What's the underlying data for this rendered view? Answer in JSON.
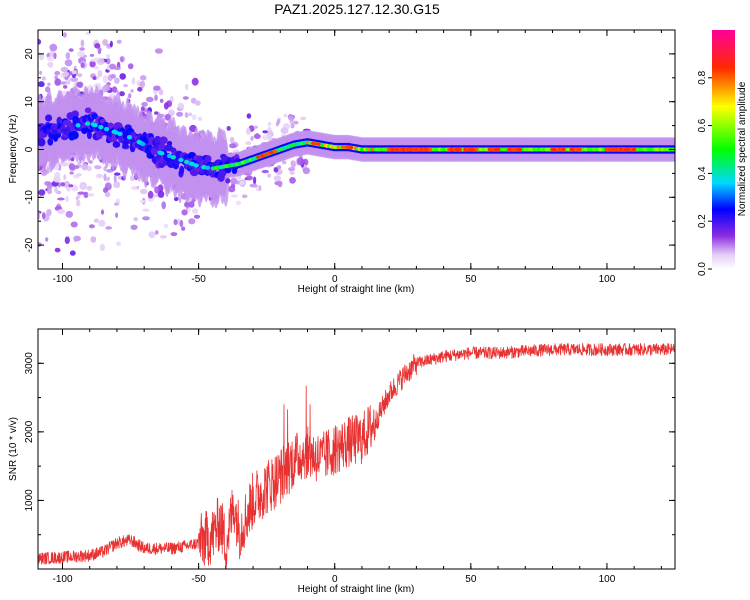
{
  "title": "PAZ1.2025.127.12.30.G15",
  "chart_data": [
    {
      "type": "heatmap",
      "xlabel": "Height of straight line (km)",
      "ylabel": "Frequency (Hz)",
      "xlim": [
        -109,
        125
      ],
      "ylim": [
        -25,
        25
      ],
      "xticks": [
        -100,
        -50,
        0,
        50,
        100
      ],
      "yticks": [
        -20,
        -10,
        0,
        10,
        20
      ],
      "colorbar": {
        "label": "Normalized spectral amplitude",
        "range": [
          0,
          1
        ],
        "ticks": [
          "0.0",
          "0.2",
          "0.4",
          "0.6",
          "0.8"
        ],
        "colormap": "rainbow (white-violet-blue-cyan-green-yellow-red-magenta)"
      },
      "ridge": {
        "description": "dominant frequency ridge",
        "x": [
          -109,
          -100,
          -95,
          -90,
          -85,
          -80,
          -75,
          -70,
          -65,
          -60,
          -55,
          -50,
          -45,
          -40,
          -35,
          -30,
          -25,
          -20,
          -15,
          -10,
          -5,
          0,
          5,
          10,
          15,
          20,
          30,
          50,
          80,
          100,
          125
        ],
        "y": [
          3,
          4.5,
          5,
          5.5,
          4.5,
          3.5,
          2.5,
          1,
          -0.5,
          -1.5,
          -2.5,
          -3.5,
          -4,
          -3.5,
          -3,
          -2,
          -1,
          0,
          1,
          1.5,
          1,
          0.5,
          0.5,
          0,
          0,
          0,
          0,
          0,
          0,
          0,
          0
        ]
      }
    },
    {
      "type": "line",
      "xlabel": "Height of straight line (km)",
      "ylabel": "SNR (10 * v/v)",
      "xlim": [
        -109,
        125
      ],
      "ylim": [
        0,
        3500
      ],
      "xticks": [
        -100,
        -50,
        0,
        50,
        100
      ],
      "yticks": [
        1000,
        2000,
        3000
      ],
      "color": "#e83232",
      "series": [
        {
          "x": [
            -109,
            -100,
            -90,
            -85,
            -80,
            -75,
            -70,
            -60,
            -55,
            -50,
            -45,
            -42,
            -40,
            -37,
            -35,
            -30,
            -25,
            -20,
            -15,
            -10,
            -5,
            0,
            5,
            10,
            15,
            20,
            25,
            30,
            40,
            50,
            60,
            80,
            100,
            125
          ],
          "values": [
            150,
            170,
            200,
            250,
            380,
            420,
            300,
            300,
            330,
            380,
            480,
            700,
            350,
            950,
            550,
            1000,
            1200,
            1350,
            1600,
            1700,
            1600,
            1750,
            1850,
            1900,
            2150,
            2550,
            2800,
            3000,
            3100,
            3150,
            3150,
            3200,
            3200,
            3200
          ]
        }
      ]
    }
  ]
}
